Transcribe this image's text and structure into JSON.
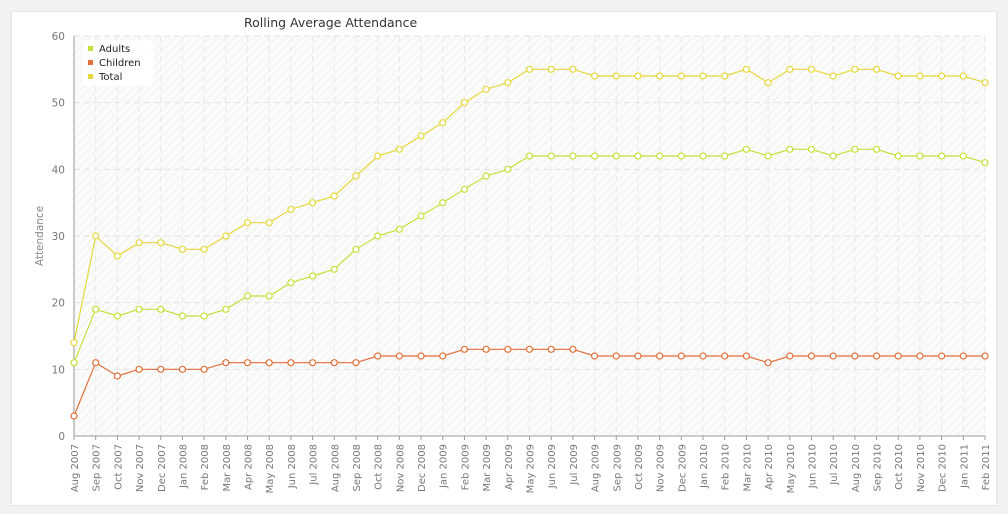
{
  "chart_data": {
    "type": "line",
    "title": "Rolling Average Attendance",
    "xlabel": "",
    "ylabel": "Attendance",
    "ylim": [
      0,
      60
    ],
    "yticks": [
      0,
      10,
      20,
      30,
      40,
      50,
      60
    ],
    "grid": true,
    "legend_position": "top-left",
    "categories": [
      "Aug 2007",
      "Sep 2007",
      "Oct 2007",
      "Nov 2007",
      "Dec 2007",
      "Jan 2008",
      "Feb 2008",
      "Mar 2008",
      "Apr 2008",
      "May 2008",
      "Jun 2008",
      "Jul 2008",
      "Aug 2008",
      "Sep 2008",
      "Oct 2008",
      "Nov 2008",
      "Dec 2008",
      "Jan 2009",
      "Feb 2009",
      "Mar 2009",
      "Apr 2009",
      "May 2009",
      "Jun 2009",
      "Jul 2009",
      "Aug 2009",
      "Sep 2009",
      "Oct 2009",
      "Nov 2009",
      "Dec 2009",
      "Jan 2010",
      "Feb 2010",
      "Mar 2010",
      "Apr 2010",
      "May 2010",
      "Jun 2010",
      "Jul 2010",
      "Aug 2010",
      "Sep 2010",
      "Oct 2010",
      "Nov 2010",
      "Dec 2010",
      "Jan 2011",
      "Feb 2011"
    ],
    "series": [
      {
        "name": "Adults",
        "color": "#c5e03a",
        "values": [
          11,
          19,
          18,
          19,
          19,
          18,
          18,
          19,
          21,
          21,
          23,
          24,
          25,
          28,
          30,
          31,
          33,
          35,
          37,
          39,
          40,
          42,
          42,
          42,
          42,
          42,
          42,
          42,
          42,
          42,
          42,
          43,
          42,
          43,
          43,
          42,
          43,
          43,
          42,
          42,
          42,
          42,
          41
        ]
      },
      {
        "name": "Children",
        "color": "#e0703a",
        "values": [
          3,
          11,
          9,
          10,
          10,
          10,
          10,
          11,
          11,
          11,
          11,
          11,
          11,
          11,
          12,
          12,
          12,
          12,
          13,
          13,
          13,
          13,
          13,
          13,
          12,
          12,
          12,
          12,
          12,
          12,
          12,
          12,
          11,
          12,
          12,
          12,
          12,
          12,
          12,
          12,
          12,
          12,
          12
        ]
      },
      {
        "name": "Total",
        "color": "#e6d83a",
        "values": [
          14,
          30,
          27,
          29,
          29,
          28,
          28,
          30,
          32,
          32,
          34,
          35,
          36,
          39,
          42,
          43,
          45,
          47,
          50,
          52,
          53,
          55,
          55,
          55,
          54,
          54,
          54,
          54,
          54,
          54,
          54,
          55,
          53,
          55,
          55,
          54,
          55,
          55,
          54,
          54,
          54,
          54,
          53
        ]
      }
    ]
  }
}
